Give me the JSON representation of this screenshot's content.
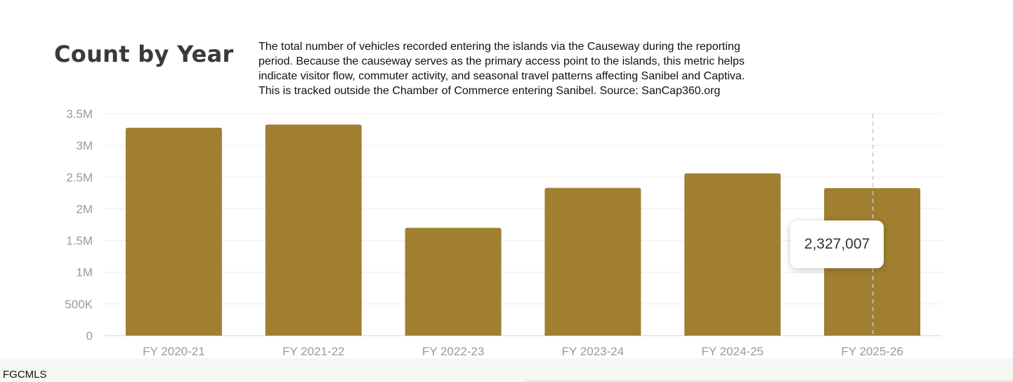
{
  "header": {
    "title": "Count by Year",
    "description": "The total number of vehicles recorded entering the islands via the Causeway during the reporting\nperiod. Because the causeway serves as the primary access point to the islands, this metric helps\nindicate visitor flow, commuter activity, and seasonal travel patterns affecting Sanibel and Captiva.\nThis is tracked outside the Chamber of Commerce entering Sanibel.  Source: SanCap360.org"
  },
  "chart_data": {
    "type": "bar",
    "title": "Count by Year",
    "xlabel": "",
    "ylabel": "",
    "categories": [
      "FY 2020-21",
      "FY 2021-22",
      "FY 2022-23",
      "FY 2023-24",
      "FY 2024-25",
      "FY 2025-26"
    ],
    "values": [
      3280000,
      3330000,
      1700000,
      2330000,
      2560000,
      2327007
    ],
    "ylim": [
      0,
      3500000
    ],
    "yticks": [
      0,
      500000,
      1000000,
      1500000,
      2000000,
      2500000,
      3000000,
      3500000
    ],
    "ytick_labels": [
      "0",
      "500K",
      "1M",
      "1.5M",
      "2M",
      "2.5M",
      "3M",
      "3.5M"
    ],
    "bar_color": "#a07f31",
    "grid": true,
    "highlighted_category": "FY 2025-26",
    "tooltip": "2,327,007"
  },
  "footer": {
    "text": "FGCMLS"
  }
}
